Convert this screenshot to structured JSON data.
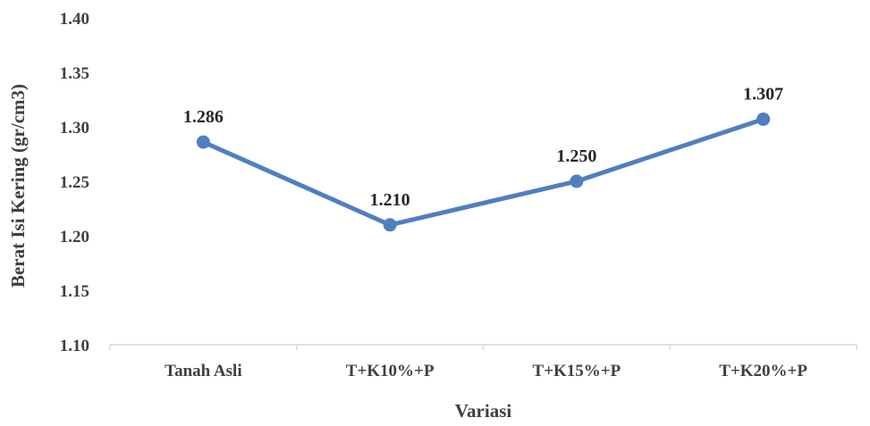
{
  "chart_data": {
    "type": "line",
    "title": "",
    "xlabel": "Variasi",
    "ylabel": "Berat Isi Kering (gr/cm3)",
    "categories": [
      "Tanah Asli",
      "T+K10%+P",
      "T+K15%+P",
      "T+K20%+P"
    ],
    "series": [
      {
        "values": [
          1.286,
          1.21,
          1.25,
          1.307
        ],
        "labels": [
          "1.286",
          "1.210",
          "1.250",
          "1.307"
        ],
        "color": "#4F7FC0"
      }
    ],
    "ylim": [
      1.1,
      1.4
    ],
    "yticks": [
      "1.10",
      "1.15",
      "1.20",
      "1.25",
      "1.30",
      "1.35",
      "1.40"
    ],
    "grid": false,
    "legend": "none"
  }
}
